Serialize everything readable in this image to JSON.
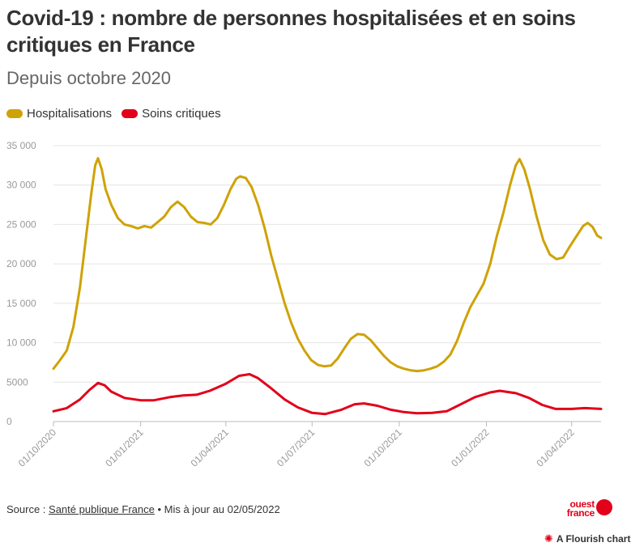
{
  "header": {
    "title": "Covid-19 : nombre de personnes hospitalisées et en soins critiques en France",
    "subtitle": "Depuis octobre 2020"
  },
  "footer": {
    "source_prefix": "Source : ",
    "source_link": "Santé publique France",
    "source_suffix": " • Mis à jour au 02/05/2022",
    "logo_line1": "ouest",
    "logo_line2": "france",
    "flourish_label": "A Flourish chart",
    "flourish_icon": "flourish-star-icon"
  },
  "colors": {
    "hospitalisations": "#cfa206",
    "soins_critiques": "#e2001a",
    "grid": "#e4e4e4",
    "axis_text": "#999999"
  },
  "chart_data": {
    "type": "line",
    "title": "Covid-19 : nombre de personnes hospitalisées et en soins critiques en France",
    "subtitle": "Depuis octobre 2020",
    "x_type": "date",
    "xlim": [
      "2020-10-01",
      "2022-05-02"
    ],
    "ylim": [
      0,
      35000
    ],
    "y_ticks": [
      0,
      5000,
      10000,
      15000,
      20000,
      25000,
      30000,
      35000
    ],
    "y_tick_labels": [
      "0",
      "5000",
      "10 000",
      "15 000",
      "20 000",
      "25 000",
      "30 000",
      "35 000"
    ],
    "x_tick_labels": [
      "01/10/2020",
      "01/01/2021",
      "01/04/2021",
      "01/07/2021",
      "01/10/2021",
      "01/01/2022",
      "01/04/2022"
    ],
    "x_tick_dates": [
      "2020-10-01",
      "2021-01-01",
      "2021-04-01",
      "2021-07-01",
      "2021-10-01",
      "2022-01-01",
      "2022-04-01"
    ],
    "grid": true,
    "legend_position": "top-left",
    "series": [
      {
        "name": "Hospitalisations",
        "color": "#cfa206",
        "points": [
          [
            "2020-10-01",
            6700
          ],
          [
            "2020-10-08",
            7800
          ],
          [
            "2020-10-15",
            9000
          ],
          [
            "2020-10-22",
            12000
          ],
          [
            "2020-10-29",
            17000
          ],
          [
            "2020-11-05",
            24000
          ],
          [
            "2020-11-10",
            29000
          ],
          [
            "2020-11-14",
            32500
          ],
          [
            "2020-11-17",
            33400
          ],
          [
            "2020-11-21",
            32000
          ],
          [
            "2020-11-25",
            29500
          ],
          [
            "2020-12-01",
            27500
          ],
          [
            "2020-12-08",
            25800
          ],
          [
            "2020-12-15",
            25000
          ],
          [
            "2020-12-22",
            24800
          ],
          [
            "2020-12-29",
            24500
          ],
          [
            "2021-01-05",
            24800
          ],
          [
            "2021-01-12",
            24600
          ],
          [
            "2021-01-19",
            25300
          ],
          [
            "2021-01-26",
            26000
          ],
          [
            "2021-02-02",
            27200
          ],
          [
            "2021-02-09",
            27900
          ],
          [
            "2021-02-16",
            27200
          ],
          [
            "2021-02-23",
            26000
          ],
          [
            "2021-03-02",
            25300
          ],
          [
            "2021-03-09",
            25200
          ],
          [
            "2021-03-16",
            25000
          ],
          [
            "2021-03-23",
            25800
          ],
          [
            "2021-03-30",
            27500
          ],
          [
            "2021-04-06",
            29500
          ],
          [
            "2021-04-12",
            30800
          ],
          [
            "2021-04-16",
            31100
          ],
          [
            "2021-04-22",
            30900
          ],
          [
            "2021-04-28",
            29800
          ],
          [
            "2021-05-05",
            27500
          ],
          [
            "2021-05-12",
            24500
          ],
          [
            "2021-05-19",
            21000
          ],
          [
            "2021-05-26",
            18000
          ],
          [
            "2021-06-02",
            15000
          ],
          [
            "2021-06-09",
            12500
          ],
          [
            "2021-06-16",
            10500
          ],
          [
            "2021-06-23",
            9000
          ],
          [
            "2021-06-30",
            7800
          ],
          [
            "2021-07-07",
            7200
          ],
          [
            "2021-07-14",
            7000
          ],
          [
            "2021-07-21",
            7100
          ],
          [
            "2021-07-28",
            8000
          ],
          [
            "2021-08-04",
            9300
          ],
          [
            "2021-08-11",
            10500
          ],
          [
            "2021-08-18",
            11100
          ],
          [
            "2021-08-25",
            11000
          ],
          [
            "2021-09-01",
            10300
          ],
          [
            "2021-09-08",
            9300
          ],
          [
            "2021-09-15",
            8300
          ],
          [
            "2021-09-22",
            7500
          ],
          [
            "2021-09-29",
            7000
          ],
          [
            "2021-10-06",
            6700
          ],
          [
            "2021-10-13",
            6500
          ],
          [
            "2021-10-20",
            6400
          ],
          [
            "2021-10-27",
            6500
          ],
          [
            "2021-11-03",
            6700
          ],
          [
            "2021-11-10",
            7000
          ],
          [
            "2021-11-17",
            7600
          ],
          [
            "2021-11-24",
            8500
          ],
          [
            "2021-12-01",
            10200
          ],
          [
            "2021-12-08",
            12500
          ],
          [
            "2021-12-15",
            14500
          ],
          [
            "2021-12-22",
            16000
          ],
          [
            "2021-12-29",
            17500
          ],
          [
            "2022-01-05",
            20000
          ],
          [
            "2022-01-12",
            23500
          ],
          [
            "2022-01-19",
            26500
          ],
          [
            "2022-01-26",
            30000
          ],
          [
            "2022-02-01",
            32500
          ],
          [
            "2022-02-05",
            33300
          ],
          [
            "2022-02-10",
            32000
          ],
          [
            "2022-02-16",
            29500
          ],
          [
            "2022-02-23",
            26000
          ],
          [
            "2022-03-02",
            23000
          ],
          [
            "2022-03-09",
            21200
          ],
          [
            "2022-03-16",
            20600
          ],
          [
            "2022-03-23",
            20800
          ],
          [
            "2022-03-30",
            22200
          ],
          [
            "2022-04-06",
            23500
          ],
          [
            "2022-04-13",
            24800
          ],
          [
            "2022-04-18",
            25200
          ],
          [
            "2022-04-23",
            24700
          ],
          [
            "2022-04-28",
            23600
          ],
          [
            "2022-05-02",
            23300
          ]
        ]
      },
      {
        "name": "Soins critiques",
        "color": "#e2001a",
        "points": [
          [
            "2020-10-01",
            1300
          ],
          [
            "2020-10-15",
            1700
          ],
          [
            "2020-10-29",
            2800
          ],
          [
            "2020-11-08",
            4000
          ],
          [
            "2020-11-17",
            4900
          ],
          [
            "2020-11-24",
            4600
          ],
          [
            "2020-12-01",
            3800
          ],
          [
            "2020-12-15",
            3000
          ],
          [
            "2021-01-01",
            2700
          ],
          [
            "2021-01-15",
            2700
          ],
          [
            "2021-02-01",
            3100
          ],
          [
            "2021-02-15",
            3300
          ],
          [
            "2021-03-01",
            3400
          ],
          [
            "2021-03-15",
            3900
          ],
          [
            "2021-04-01",
            4800
          ],
          [
            "2021-04-15",
            5800
          ],
          [
            "2021-04-26",
            6000
          ],
          [
            "2021-05-05",
            5500
          ],
          [
            "2021-05-19",
            4200
          ],
          [
            "2021-06-02",
            2800
          ],
          [
            "2021-06-16",
            1800
          ],
          [
            "2021-07-01",
            1100
          ],
          [
            "2021-07-15",
            950
          ],
          [
            "2021-08-01",
            1500
          ],
          [
            "2021-08-15",
            2200
          ],
          [
            "2021-08-25",
            2300
          ],
          [
            "2021-09-08",
            2000
          ],
          [
            "2021-09-22",
            1500
          ],
          [
            "2021-10-06",
            1200
          ],
          [
            "2021-10-20",
            1050
          ],
          [
            "2021-11-05",
            1100
          ],
          [
            "2021-11-20",
            1300
          ],
          [
            "2021-12-05",
            2200
          ],
          [
            "2021-12-20",
            3100
          ],
          [
            "2022-01-05",
            3700
          ],
          [
            "2022-01-15",
            3900
          ],
          [
            "2022-02-01",
            3600
          ],
          [
            "2022-02-15",
            3000
          ],
          [
            "2022-03-01",
            2100
          ],
          [
            "2022-03-15",
            1600
          ],
          [
            "2022-04-01",
            1600
          ],
          [
            "2022-04-15",
            1700
          ],
          [
            "2022-05-02",
            1600
          ]
        ]
      }
    ]
  }
}
